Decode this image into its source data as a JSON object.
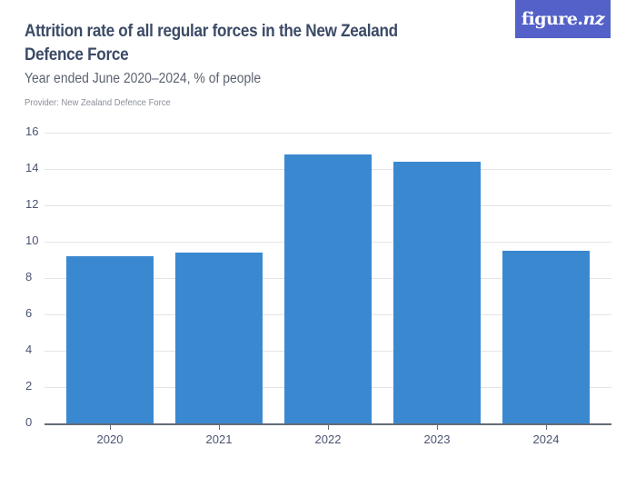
{
  "header": {
    "title": "Attrition rate of all regular forces in the New Zealand Defence Force",
    "subtitle": "Year ended June 2020–2024, % of people",
    "provider": "Provider: New Zealand Defence Force",
    "logo_main": "figure.",
    "logo_suffix": "nz"
  },
  "colors": {
    "bar": "#3a89d0",
    "logo_bg": "#5461c8",
    "title": "#3b4a66"
  },
  "chart_data": {
    "type": "bar",
    "title": "Attrition rate of all regular forces in the New Zealand Defence Force",
    "subtitle": "Year ended June 2020–2024, % of people",
    "xlabel": "",
    "ylabel": "% of people",
    "categories": [
      "2020",
      "2021",
      "2022",
      "2023",
      "2024"
    ],
    "values": [
      9.2,
      9.4,
      14.8,
      14.4,
      9.5
    ],
    "ylim": [
      0,
      16
    ],
    "yticks": [
      0,
      2,
      4,
      6,
      8,
      10,
      12,
      14,
      16
    ],
    "grid": true,
    "legend": null
  }
}
